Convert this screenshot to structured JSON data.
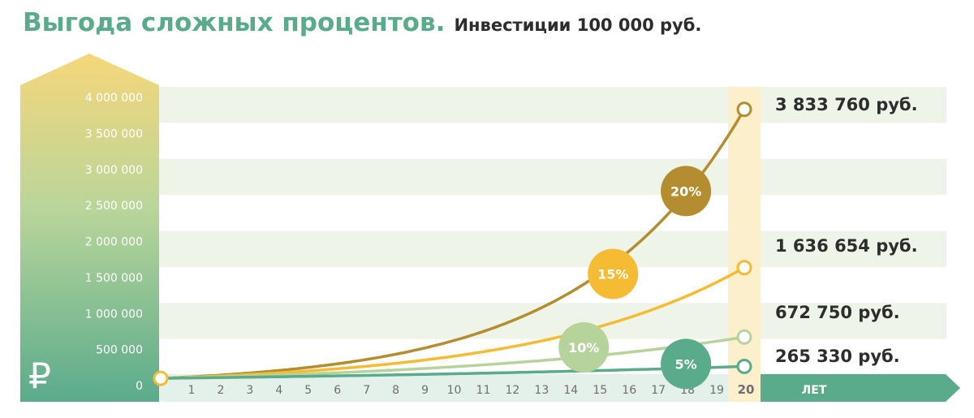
{
  "title": {
    "main": "Выгода сложных процентов.",
    "sub": "Инвестиции  100 000 руб."
  },
  "colors": {
    "title": "#5aab8c",
    "band": "#eef4e8",
    "highlight": "#fcf0cc",
    "axis_bar": "#5aab8c"
  },
  "chart_data": {
    "type": "line",
    "title": "Выгода сложных процентов.",
    "subtitle": "Инвестиции  100 000 руб.",
    "xlabel": "ЛЕТ",
    "ylabel": "₽",
    "x": [
      0,
      1,
      2,
      3,
      4,
      5,
      6,
      7,
      8,
      9,
      10,
      11,
      12,
      13,
      14,
      15,
      16,
      17,
      18,
      19,
      20
    ],
    "x_tick_labels": [
      "1",
      "2",
      "3",
      "4",
      "5",
      "6",
      "7",
      "8",
      "9",
      "10",
      "11",
      "12",
      "13",
      "14",
      "15",
      "16",
      "17",
      "18",
      "19",
      "20"
    ],
    "y_tick_labels": [
      "0",
      "500 000",
      "1 000 000",
      "1 500 000",
      "2 000 000",
      "2 500 000",
      "3 000 000",
      "3 500 000",
      "4 000 000"
    ],
    "ylim": [
      0,
      4000000
    ],
    "xlim": [
      0,
      20
    ],
    "grid": "horizontal bands",
    "initial_investment": 100000,
    "highlight_x": 20,
    "series": [
      {
        "name": "20%",
        "rate": 0.2,
        "color": "#b48d30",
        "end_label": "3 833 760 руб.",
        "badge_x": 18,
        "badge_y": 2700000,
        "values": [
          100000,
          120000,
          144000,
          172800,
          207360,
          248832,
          298598,
          358318,
          429982,
          515978,
          619174,
          743008,
          891610,
          1069932,
          1283918,
          1540702,
          1848843,
          2218611,
          2662333,
          3194800,
          3833760
        ]
      },
      {
        "name": "15%",
        "rate": 0.15,
        "color": "#f5bb32",
        "end_label": "1 636 654 руб.",
        "badge_x": 15.5,
        "badge_y": 1550000,
        "values": [
          100000,
          115000,
          132250,
          152088,
          174901,
          201136,
          231306,
          266002,
          305902,
          351788,
          404556,
          465239,
          535025,
          615279,
          707571,
          813706,
          935762,
          1076126,
          1237545,
          1423177,
          1636654
        ]
      },
      {
        "name": "10%",
        "rate": 0.1,
        "color": "#b6d39c",
        "end_label": "672 750 руб.",
        "badge_x": 14.5,
        "badge_y": 530000,
        "values": [
          100000,
          110000,
          121000,
          133100,
          146410,
          161051,
          177156,
          194872,
          214359,
          235795,
          259374,
          285312,
          313843,
          345227,
          379750,
          417725,
          459497,
          505447,
          555992,
          611591,
          672750
        ]
      },
      {
        "name": "5%",
        "rate": 0.05,
        "color": "#5aab8c",
        "end_label": "265 330 руб.",
        "badge_x": 18,
        "badge_y": 300000,
        "values": [
          100000,
          105000,
          110250,
          115763,
          121551,
          127628,
          134010,
          140710,
          147746,
          155133,
          162889,
          171034,
          179586,
          188565,
          197993,
          207893,
          218287,
          229202,
          240662,
          252695,
          265330
        ]
      }
    ]
  }
}
